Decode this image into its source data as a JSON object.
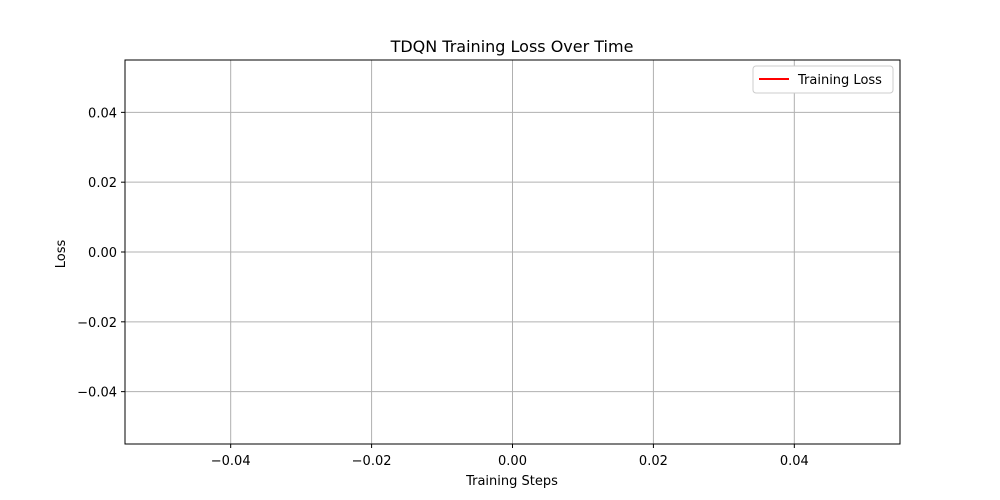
{
  "chart_data": {
    "type": "line",
    "title": "TDQN Training Loss Over Time",
    "xlabel": "Training Steps",
    "ylabel": "Loss",
    "xlim": [
      -0.055,
      0.055
    ],
    "ylim": [
      -0.055,
      0.055
    ],
    "xticks": [
      -0.04,
      -0.02,
      0.0,
      0.02,
      0.04
    ],
    "yticks": [
      -0.04,
      -0.02,
      0.0,
      0.02,
      0.04
    ],
    "xtick_labels": [
      "−0.04",
      "−0.02",
      "0.00",
      "0.02",
      "0.04"
    ],
    "ytick_labels": [
      "−0.04",
      "−0.02",
      "0.00",
      "0.02",
      "0.04"
    ],
    "grid": true,
    "legend_position": "top-right",
    "series": [
      {
        "name": "Training Loss",
        "color": "#ff0000",
        "x": [],
        "y": []
      }
    ]
  }
}
